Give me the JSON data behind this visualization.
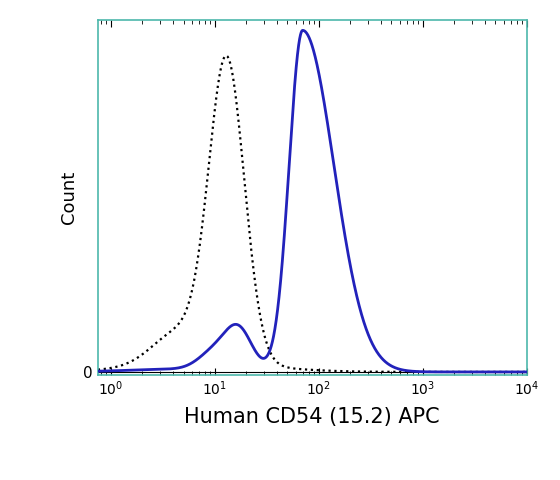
{
  "xlabel": "Human CD54 (15.2) APC",
  "ylabel": "Count",
  "xlabel_fontsize": 15,
  "ylabel_fontsize": 13,
  "xmin": 0.75,
  "xmax": 10000,
  "ymin": -8,
  "ymax": 980,
  "background_color": "#ffffff",
  "plot_bg_color": "#ffffff",
  "border_color": "#4db8ac",
  "dotted_color": "#000000",
  "solid_color": "#2222bb"
}
